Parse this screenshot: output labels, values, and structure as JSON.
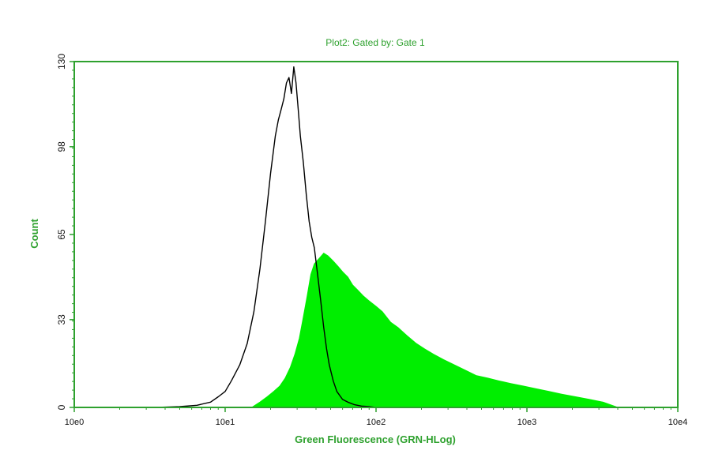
{
  "chart_data": {
    "type": "area",
    "title": "Plot2: Gated by: Gate 1",
    "xlabel": "Green Fluorescence (GRN-HLog)",
    "ylabel": "Count",
    "x_scale": "log",
    "xlim": [
      1,
      10000
    ],
    "ylim": [
      0,
      130
    ],
    "x_tick_values": [
      1,
      10,
      100,
      1000,
      10000
    ],
    "x_tick_labels": [
      "10e0",
      "10e1",
      "10e2",
      "10e3",
      "10e4"
    ],
    "y_tick_values": [
      0,
      33,
      65,
      98,
      130
    ],
    "y_tick_labels": [
      "0",
      "33",
      "65",
      "98",
      "130"
    ],
    "grid": false,
    "legend": "none",
    "colors": {
      "frame": "#2ea12e",
      "control_line": "#000000",
      "sample_fill": "#00ee00",
      "text_accent": "#2ea12e"
    },
    "series": [
      {
        "style": "line",
        "x": [
          1.8,
          3.5,
          5.0,
          6.5,
          8.0,
          9.0,
          10.0,
          11.0,
          12.5,
          14.0,
          15.5,
          17.0,
          18.5,
          20.0,
          21.5,
          22.5,
          23.5,
          24.5,
          25.5,
          26.5,
          27.5,
          28.5,
          29.5,
          30.5,
          31.5,
          33.0,
          34.5,
          36.0,
          37.5,
          39.0,
          41.0,
          43.0,
          45.0,
          47.0,
          49.0,
          52.0,
          55.0,
          60.0,
          65.0,
          72.0,
          80.0,
          90.0,
          100.0,
          110.0
        ],
        "values": [
          0,
          0,
          0.3,
          0.8,
          2,
          4,
          6,
          10,
          16,
          24,
          36,
          52,
          70,
          88,
          102,
          108,
          112,
          116,
          122,
          124,
          118,
          128,
          122,
          112,
          102,
          92,
          80,
          70,
          64,
          60,
          50,
          40,
          30,
          22,
          16,
          10,
          6,
          3,
          2,
          1,
          0.5,
          0.3,
          0,
          0
        ]
      },
      {
        "style": "area",
        "x": [
          15.0,
          17.0,
          19.0,
          21.0,
          23.0,
          25.0,
          27.0,
          29.0,
          31.0,
          33.0,
          35.0,
          37.0,
          39.0,
          42.0,
          45.0,
          48.0,
          52.0,
          56.0,
          60.0,
          65.0,
          70.0,
          76.0,
          82.0,
          90.0,
          100.0,
          110.0,
          125.0,
          140.0,
          160.0,
          185.0,
          210.0,
          240.0,
          280.0,
          330.0,
          390.0,
          460.0,
          550.0,
          650.0,
          780.0,
          950.0,
          1150.0,
          1400.0,
          1700.0,
          2100.0,
          2600.0,
          3200.0,
          4000.0
        ],
        "values": [
          0,
          2,
          4,
          6,
          8,
          11,
          15,
          20,
          26,
          34,
          42,
          50,
          54,
          56,
          58,
          57,
          55,
          53,
          51,
          49,
          46,
          44,
          42,
          40,
          38,
          36,
          32,
          30,
          27,
          24,
          22,
          20,
          18,
          16,
          14,
          12,
          11,
          10,
          9,
          8,
          7,
          6,
          5,
          4,
          3,
          2,
          0
        ]
      }
    ]
  }
}
